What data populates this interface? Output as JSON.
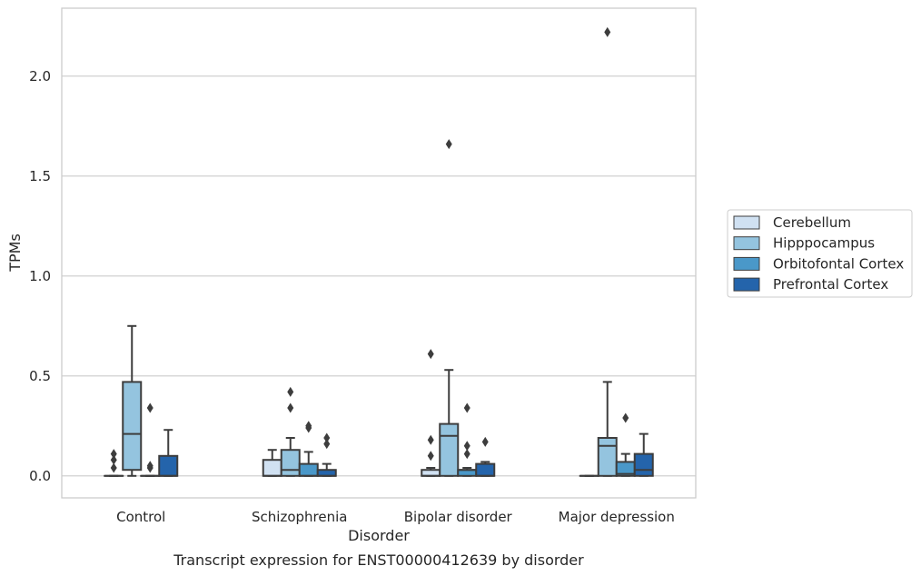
{
  "chart_data": {
    "type": "box",
    "title": "",
    "caption": "Transcript expression for ENST00000412639 by disorder",
    "xlabel": "Disorder",
    "ylabel": "TPMs",
    "ylim": [
      -0.11,
      2.34
    ],
    "yticks": [
      0.0,
      0.5,
      1.0,
      1.5,
      2.0
    ],
    "ytick_labels": [
      "0.0",
      "0.5",
      "1.0",
      "1.5",
      "2.0"
    ],
    "grid": "horizontal",
    "legend_position": "right",
    "categories": [
      "Control",
      "Schizophrenia",
      "Bipolar disorder",
      "Major depression"
    ],
    "series": [
      {
        "name": "Cerebellum",
        "color": "#d0e1f2",
        "boxes": [
          {
            "whislo": 0.0,
            "q1": 0.0,
            "med": 0.0,
            "q3": 0.0,
            "whishi": 0.0,
            "fliers": [
              0.04,
              0.08,
              0.11
            ]
          },
          {
            "whislo": 0.0,
            "q1": 0.0,
            "med": 0.0,
            "q3": 0.08,
            "whishi": 0.13,
            "fliers": []
          },
          {
            "whislo": 0.0,
            "q1": 0.0,
            "med": 0.0,
            "q3": 0.03,
            "whishi": 0.04,
            "fliers": [
              0.1,
              0.18,
              0.61
            ]
          },
          {
            "whislo": 0.0,
            "q1": 0.0,
            "med": 0.0,
            "q3": 0.0,
            "whishi": 0.0,
            "fliers": []
          }
        ]
      },
      {
        "name": "Hipppocampus",
        "color": "#94c4df",
        "boxes": [
          {
            "whislo": 0.0,
            "q1": 0.03,
            "med": 0.21,
            "q3": 0.47,
            "whishi": 0.75,
            "fliers": []
          },
          {
            "whislo": 0.0,
            "q1": 0.0,
            "med": 0.03,
            "q3": 0.13,
            "whishi": 0.19,
            "fliers": [
              0.34,
              0.42
            ]
          },
          {
            "whislo": 0.0,
            "q1": 0.0,
            "med": 0.2,
            "q3": 0.26,
            "whishi": 0.53,
            "fliers": [
              1.66
            ]
          },
          {
            "whislo": 0.0,
            "q1": 0.0,
            "med": 0.15,
            "q3": 0.19,
            "whishi": 0.47,
            "fliers": [
              2.22
            ]
          }
        ]
      },
      {
        "name": "Orbitofontal Cortex",
        "color": "#4a98c9",
        "boxes": [
          {
            "whislo": 0.0,
            "q1": 0.0,
            "med": 0.0,
            "q3": 0.0,
            "whishi": 0.0,
            "fliers": [
              0.04,
              0.05,
              0.34
            ]
          },
          {
            "whislo": 0.0,
            "q1": 0.0,
            "med": 0.0,
            "q3": 0.06,
            "whishi": 0.12,
            "fliers": [
              0.24,
              0.25
            ]
          },
          {
            "whislo": 0.0,
            "q1": 0.0,
            "med": 0.03,
            "q3": 0.03,
            "whishi": 0.04,
            "fliers": [
              0.11,
              0.15,
              0.34
            ]
          },
          {
            "whislo": 0.0,
            "q1": 0.0,
            "med": 0.01,
            "q3": 0.07,
            "whishi": 0.11,
            "fliers": [
              0.29
            ]
          }
        ]
      },
      {
        "name": "Prefrontal Cortex",
        "color": "#2464ab",
        "boxes": [
          {
            "whislo": 0.0,
            "q1": 0.0,
            "med": 0.0,
            "q3": 0.1,
            "whishi": 0.23,
            "fliers": []
          },
          {
            "whislo": 0.0,
            "q1": 0.0,
            "med": 0.0,
            "q3": 0.03,
            "whishi": 0.06,
            "fliers": [
              0.16,
              0.19
            ]
          },
          {
            "whislo": 0.0,
            "q1": 0.0,
            "med": 0.0,
            "q3": 0.06,
            "whishi": 0.07,
            "fliers": [
              0.17
            ]
          },
          {
            "whislo": 0.0,
            "q1": 0.0,
            "med": 0.03,
            "q3": 0.11,
            "whishi": 0.21,
            "fliers": []
          }
        ]
      }
    ]
  }
}
